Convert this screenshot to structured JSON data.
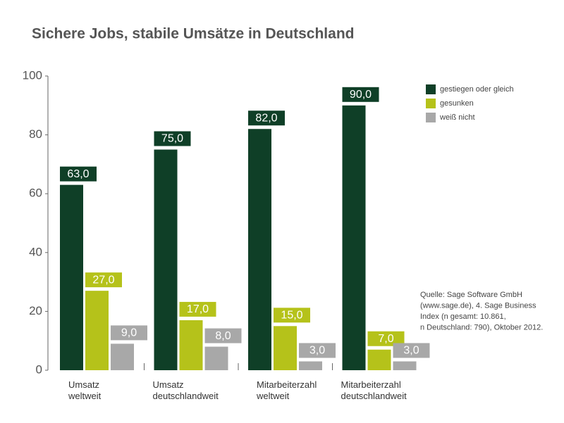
{
  "chart_data": {
    "type": "bar",
    "title": "Sichere Jobs, stabile Umsätze in Deutschland",
    "categories": [
      "Umsatz\nweltweit",
      "Umsatz\ndeutschlandweit",
      "Mitarbeiterzahl\nweltweit",
      "Mitarbeiterzahl\ndeutschlandweit"
    ],
    "series": [
      {
        "name": "gestiegen oder gleich",
        "color": "#0f3f27",
        "values": [
          63,
          75,
          82,
          90
        ],
        "value_labels": [
          "63,0",
          "75,0",
          "82,0",
          "90,0"
        ]
      },
      {
        "name": "gesunken",
        "color": "#b5c21a",
        "values": [
          27,
          17,
          15,
          7
        ],
        "value_labels": [
          "27,0",
          "17,0",
          "15,0",
          "7,0"
        ]
      },
      {
        "name": "weiß nicht",
        "color": "#a8a8a8",
        "values": [
          9,
          8,
          3,
          3
        ],
        "value_labels": [
          "9,0",
          "8,0",
          "3,0",
          "3,0"
        ]
      }
    ],
    "ylim": [
      0,
      100
    ],
    "yticks": [
      0,
      20,
      40,
      60,
      80,
      100
    ],
    "legend": "top-right",
    "source": [
      "Quelle: Sage Software GmbH",
      "(www.sage.de), 4. Sage Business",
      "Index (n gesamt: 10.861,",
      "n Deutschland: 790), Oktober 2012."
    ]
  }
}
